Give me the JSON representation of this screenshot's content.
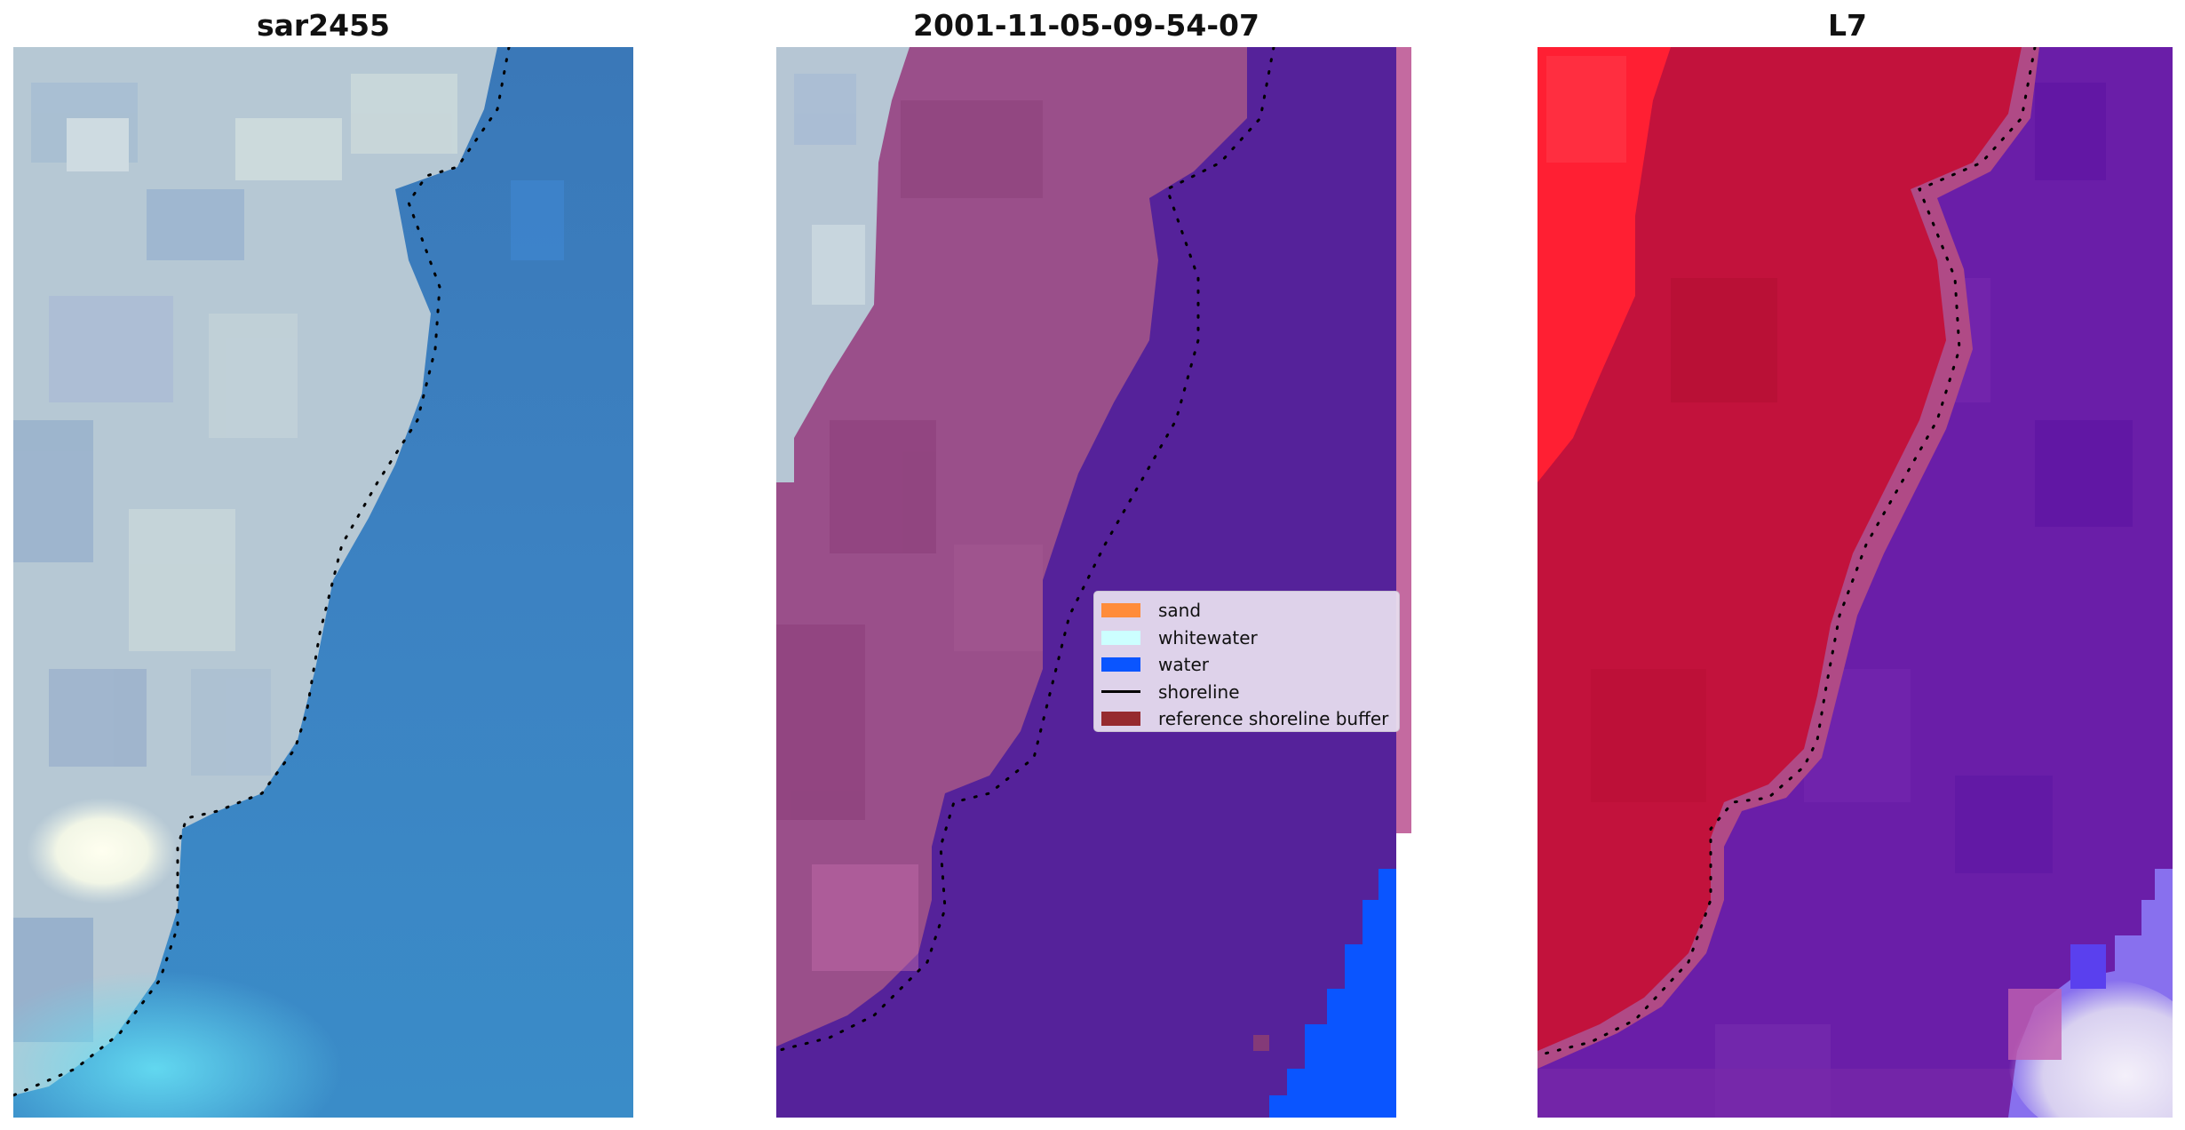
{
  "panels": {
    "left_title": "sar2455",
    "middle_title": "2001-11-05-09-54-07",
    "right_title": "L7"
  },
  "legend": {
    "items": [
      {
        "label": "sand",
        "color": "#ff8c3a"
      },
      {
        "label": "whitewater",
        "color": "#ccffff"
      },
      {
        "label": "water",
        "color": "#0a55ff"
      },
      {
        "label": "shoreline",
        "color": "#000000"
      },
      {
        "label": "reference shoreline buffer",
        "color": "#962a2f"
      }
    ]
  },
  "colors": {
    "classified_sand_area": "#9a4f8a",
    "classified_water_area": "#55229a",
    "right_land": "#c2123c",
    "right_water": "#6a1ea8"
  }
}
